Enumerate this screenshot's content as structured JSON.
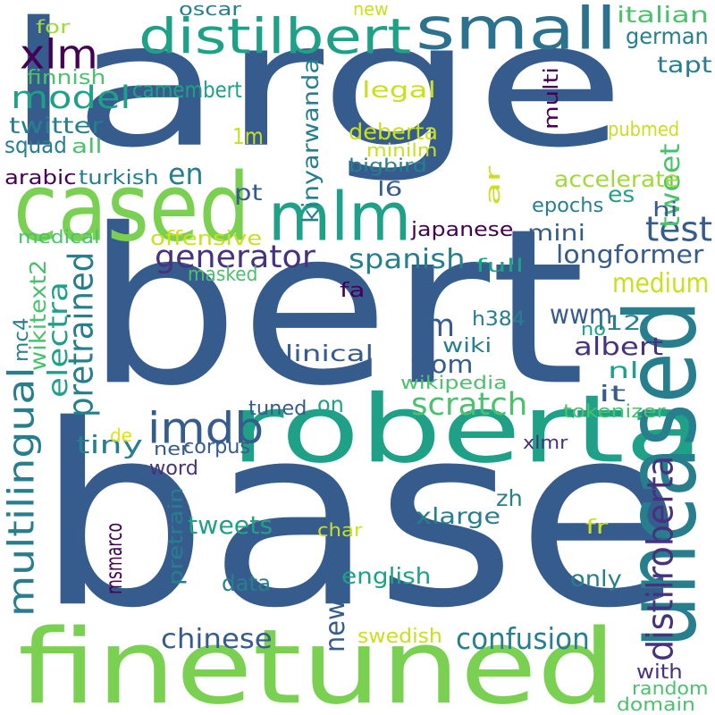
{
  "palette": {
    "dark_purple": "#440154",
    "purple": "#46327e",
    "blue": "#365c8d",
    "teal": "#277f8e",
    "sea": "#1fa187",
    "green": "#4ac16d",
    "lime": "#a0da39",
    "yellow": "#dde318"
  },
  "words": [
    {
      "text": "large",
      "color": "#365c8d",
      "vertical": false
    },
    {
      "text": "bert",
      "color": "#365c8d",
      "vertical": false
    },
    {
      "text": "base",
      "color": "#365c8d",
      "vertical": false
    },
    {
      "text": "roberta",
      "color": "#1fa187",
      "vertical": false
    },
    {
      "text": "finetuned",
      "color": "#7ad151",
      "vertical": false
    },
    {
      "text": "cased",
      "color": "#7ad151",
      "vertical": false
    },
    {
      "text": "uncased",
      "color": "#277f8e",
      "vertical": true
    },
    {
      "text": "small",
      "color": "#2c728e",
      "vertical": false
    },
    {
      "text": "mlm",
      "color": "#1fa187",
      "vertical": false
    },
    {
      "text": "distilbert",
      "color": "#1fa187",
      "vertical": false
    },
    {
      "text": "xlm",
      "color": "#440154",
      "vertical": false
    },
    {
      "text": "imdb",
      "color": "#365c8d",
      "vertical": false
    },
    {
      "text": "test",
      "color": "#365c8d",
      "vertical": false
    },
    {
      "text": "generator",
      "color": "#46327e",
      "vertical": false
    },
    {
      "text": "model",
      "color": "#1fa187",
      "vertical": false
    },
    {
      "text": "multilingual",
      "color": "#277f8e",
      "vertical": true
    },
    {
      "text": "scratch",
      "color": "#4ac16d",
      "vertical": false
    },
    {
      "text": "pretrained",
      "color": "#277f8e",
      "vertical": true
    },
    {
      "text": "confusion",
      "color": "#277f8e",
      "vertical": false
    },
    {
      "text": "lm",
      "color": "#365c8d",
      "vertical": false
    },
    {
      "text": "spanish",
      "color": "#277f8e",
      "vertical": false
    },
    {
      "text": "longformer",
      "color": "#365c8d",
      "vertical": false
    },
    {
      "text": "camembert",
      "color": "#1fa187",
      "vertical": false
    },
    {
      "text": "italian",
      "color": "#4ac16d",
      "vertical": false
    },
    {
      "text": "german",
      "color": "#277f8e",
      "vertical": false
    },
    {
      "text": "tapt",
      "color": "#277f8e",
      "vertical": false
    },
    {
      "text": "legal",
      "color": "#c8e020",
      "vertical": false
    },
    {
      "text": "twitter",
      "color": "#277f8e",
      "vertical": false
    },
    {
      "text": "en",
      "color": "#277f8e",
      "vertical": false
    },
    {
      "text": "deberta",
      "color": "#c8e020",
      "vertical": false
    },
    {
      "text": "tweet",
      "color": "#4ac16d",
      "vertical": true
    },
    {
      "text": "accelerate",
      "color": "#a0da39",
      "vertical": false
    },
    {
      "text": "es",
      "color": "#1fa187",
      "vertical": false
    },
    {
      "text": "pt",
      "color": "#365c8d",
      "vertical": false
    },
    {
      "text": "l6",
      "color": "#365c8d",
      "vertical": false
    },
    {
      "text": "hi",
      "color": "#365c8d",
      "vertical": false
    },
    {
      "text": "japanese",
      "color": "#440154",
      "vertical": false
    },
    {
      "text": "mini",
      "color": "#365c8d",
      "vertical": false
    },
    {
      "text": "offensive",
      "color": "#c8e020",
      "vertical": false
    },
    {
      "text": "medium",
      "color": "#c8e020",
      "vertical": false
    },
    {
      "text": "wwm",
      "color": "#365c8d",
      "vertical": false
    },
    {
      "text": "tiny",
      "color": "#277f8e",
      "vertical": false
    },
    {
      "text": "from",
      "color": "#365c8d",
      "vertical": false
    },
    {
      "text": "albert",
      "color": "#46327e",
      "vertical": false
    },
    {
      "text": "clinical",
      "color": "#365c8d",
      "vertical": false
    },
    {
      "text": "electra",
      "color": "#1fa187",
      "vertical": true
    },
    {
      "text": "wiki",
      "color": "#277f8e",
      "vertical": false
    },
    {
      "text": "nl",
      "color": "#1fa187",
      "vertical": false
    },
    {
      "text": "it",
      "color": "#365c8d",
      "vertical": false
    },
    {
      "text": "tweets",
      "color": "#1fa187",
      "vertical": false
    },
    {
      "text": "chinese",
      "color": "#365c8d",
      "vertical": false
    },
    {
      "text": "news",
      "color": "#365c8d",
      "vertical": true
    },
    {
      "text": "distilroberta",
      "color": "#46327e",
      "vertical": true
    },
    {
      "text": "xlarge",
      "color": "#277f8e",
      "vertical": false
    },
    {
      "text": "zh",
      "color": "#277f8e",
      "vertical": false
    },
    {
      "text": "english",
      "color": "#1fa187",
      "vertical": false
    },
    {
      "text": "data",
      "color": "#277f8e",
      "vertical": false
    },
    {
      "text": "only",
      "color": "#277f8e",
      "vertical": false
    },
    {
      "text": "swedish",
      "color": "#c8e020",
      "vertical": false
    },
    {
      "text": "word",
      "color": "#46327e",
      "vertical": false
    },
    {
      "text": "corpus",
      "color": "#365c8d",
      "vertical": false
    },
    {
      "text": "ner",
      "color": "#365c8d",
      "vertical": false
    },
    {
      "text": "msmarco",
      "color": "#440154",
      "vertical": true
    },
    {
      "text": "pretrain",
      "color": "#277f8e",
      "vertical": true
    },
    {
      "text": "kinyarwanda",
      "color": "#277f8e",
      "vertical": true
    },
    {
      "text": "wikitext2",
      "color": "#4ac16d",
      "vertical": true
    },
    {
      "text": "mc4",
      "color": "#277f8e",
      "vertical": true
    },
    {
      "text": "oscar",
      "color": "#277f8e",
      "vertical": false
    },
    {
      "text": "new",
      "color": "#c8e020",
      "vertical": false
    },
    {
      "text": "for",
      "color": "#a0da39",
      "vertical": false
    },
    {
      "text": "finnish",
      "color": "#4ac16d",
      "vertical": false
    },
    {
      "text": "squad",
      "color": "#277f8e",
      "vertical": false
    },
    {
      "text": "all",
      "color": "#4ac16d",
      "vertical": false
    },
    {
      "text": "arabic",
      "color": "#440154",
      "vertical": false
    },
    {
      "text": "turkish",
      "color": "#277f8e",
      "vertical": false
    },
    {
      "text": "medical",
      "color": "#4ac16d",
      "vertical": false
    },
    {
      "text": "masked",
      "color": "#4ac16d",
      "vertical": false
    },
    {
      "text": "fa",
      "color": "#440154",
      "vertical": false
    },
    {
      "text": "h384",
      "color": "#277f8e",
      "vertical": false
    },
    {
      "text": "no",
      "color": "#1fa187",
      "vertical": false
    },
    {
      "text": "l12",
      "color": "#277f8e",
      "vertical": false
    },
    {
      "text": "full",
      "color": "#1fa187",
      "vertical": false
    },
    {
      "text": "multi",
      "color": "#440154",
      "vertical": true
    },
    {
      "text": "1m",
      "color": "#c8e020",
      "vertical": false
    },
    {
      "text": "minilm",
      "color": "#c8e020",
      "vertical": false
    },
    {
      "text": "bigbird",
      "color": "#277f8e",
      "vertical": false
    },
    {
      "text": "ar",
      "color": "#c8e020",
      "vertical": true
    },
    {
      "text": "epochs",
      "color": "#277f8e",
      "vertical": false
    },
    {
      "text": "pubmed",
      "color": "#c8e020",
      "vertical": false
    },
    {
      "text": "wikipedia",
      "color": "#4ac16d",
      "vertical": false
    },
    {
      "text": "tuned",
      "color": "#365c8d",
      "vertical": false
    },
    {
      "text": "on",
      "color": "#1fa187",
      "vertical": false
    },
    {
      "text": "tokenizer",
      "color": "#4ac16d",
      "vertical": false
    },
    {
      "text": "xlmr",
      "color": "#46327e",
      "vertical": false
    },
    {
      "text": "de",
      "color": "#dde318",
      "vertical": false
    },
    {
      "text": "char",
      "color": "#c8e020",
      "vertical": false
    },
    {
      "text": "fr",
      "color": "#c8e020",
      "vertical": false
    },
    {
      "text": "with",
      "color": "#46327e",
      "vertical": false
    },
    {
      "text": "random",
      "color": "#4ac16d",
      "vertical": false
    },
    {
      "text": "domain",
      "color": "#4ac16d",
      "vertical": false
    }
  ]
}
